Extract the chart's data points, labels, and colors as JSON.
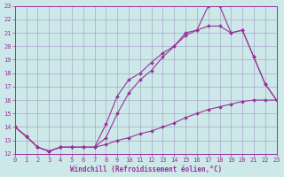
{
  "xlabel": "Windchill (Refroidissement éolien,°C)",
  "background_color": "#cce8e8",
  "grid_color": "#aaaacc",
  "line_color": "#993399",
  "xmin": 0,
  "xmax": 23,
  "ymin": 12,
  "ymax": 23,
  "line1_x": [
    0,
    1,
    2,
    3,
    4,
    5,
    6,
    7,
    8,
    9,
    10,
    11,
    12,
    13,
    14,
    15,
    16,
    17,
    18,
    19,
    20,
    21,
    22,
    23
  ],
  "line1_y": [
    14,
    13.3,
    12.5,
    12.2,
    12.5,
    12.5,
    12.5,
    12.5,
    12.7,
    13.0,
    13.2,
    13.5,
    13.7,
    14.0,
    14.3,
    14.7,
    15.0,
    15.3,
    15.5,
    15.7,
    15.9,
    16.0,
    16.0,
    16.0
  ],
  "line2_x": [
    0,
    1,
    2,
    3,
    4,
    5,
    6,
    7,
    8,
    9,
    10,
    11,
    12,
    13,
    14,
    15,
    16,
    17,
    18,
    19,
    20,
    21,
    22,
    23
  ],
  "line2_y": [
    14,
    13.3,
    12.5,
    12.2,
    12.5,
    12.5,
    12.5,
    12.5,
    14.2,
    16.3,
    17.5,
    18.0,
    18.8,
    19.5,
    20.0,
    20.8,
    21.2,
    23.0,
    23.0,
    21.0,
    21.2,
    19.2,
    17.2,
    16.0
  ],
  "line3_x": [
    0,
    1,
    2,
    3,
    4,
    5,
    6,
    7,
    8,
    9,
    10,
    11,
    12,
    13,
    14,
    15,
    16,
    17,
    18,
    19,
    20,
    21,
    22,
    23
  ],
  "line3_y": [
    14,
    13.3,
    12.5,
    12.2,
    12.5,
    12.5,
    12.5,
    12.5,
    13.2,
    15.0,
    16.5,
    17.5,
    18.2,
    19.2,
    20.0,
    21.0,
    21.2,
    21.5,
    21.5,
    21.0,
    21.2,
    19.2,
    17.2,
    16.0
  ]
}
